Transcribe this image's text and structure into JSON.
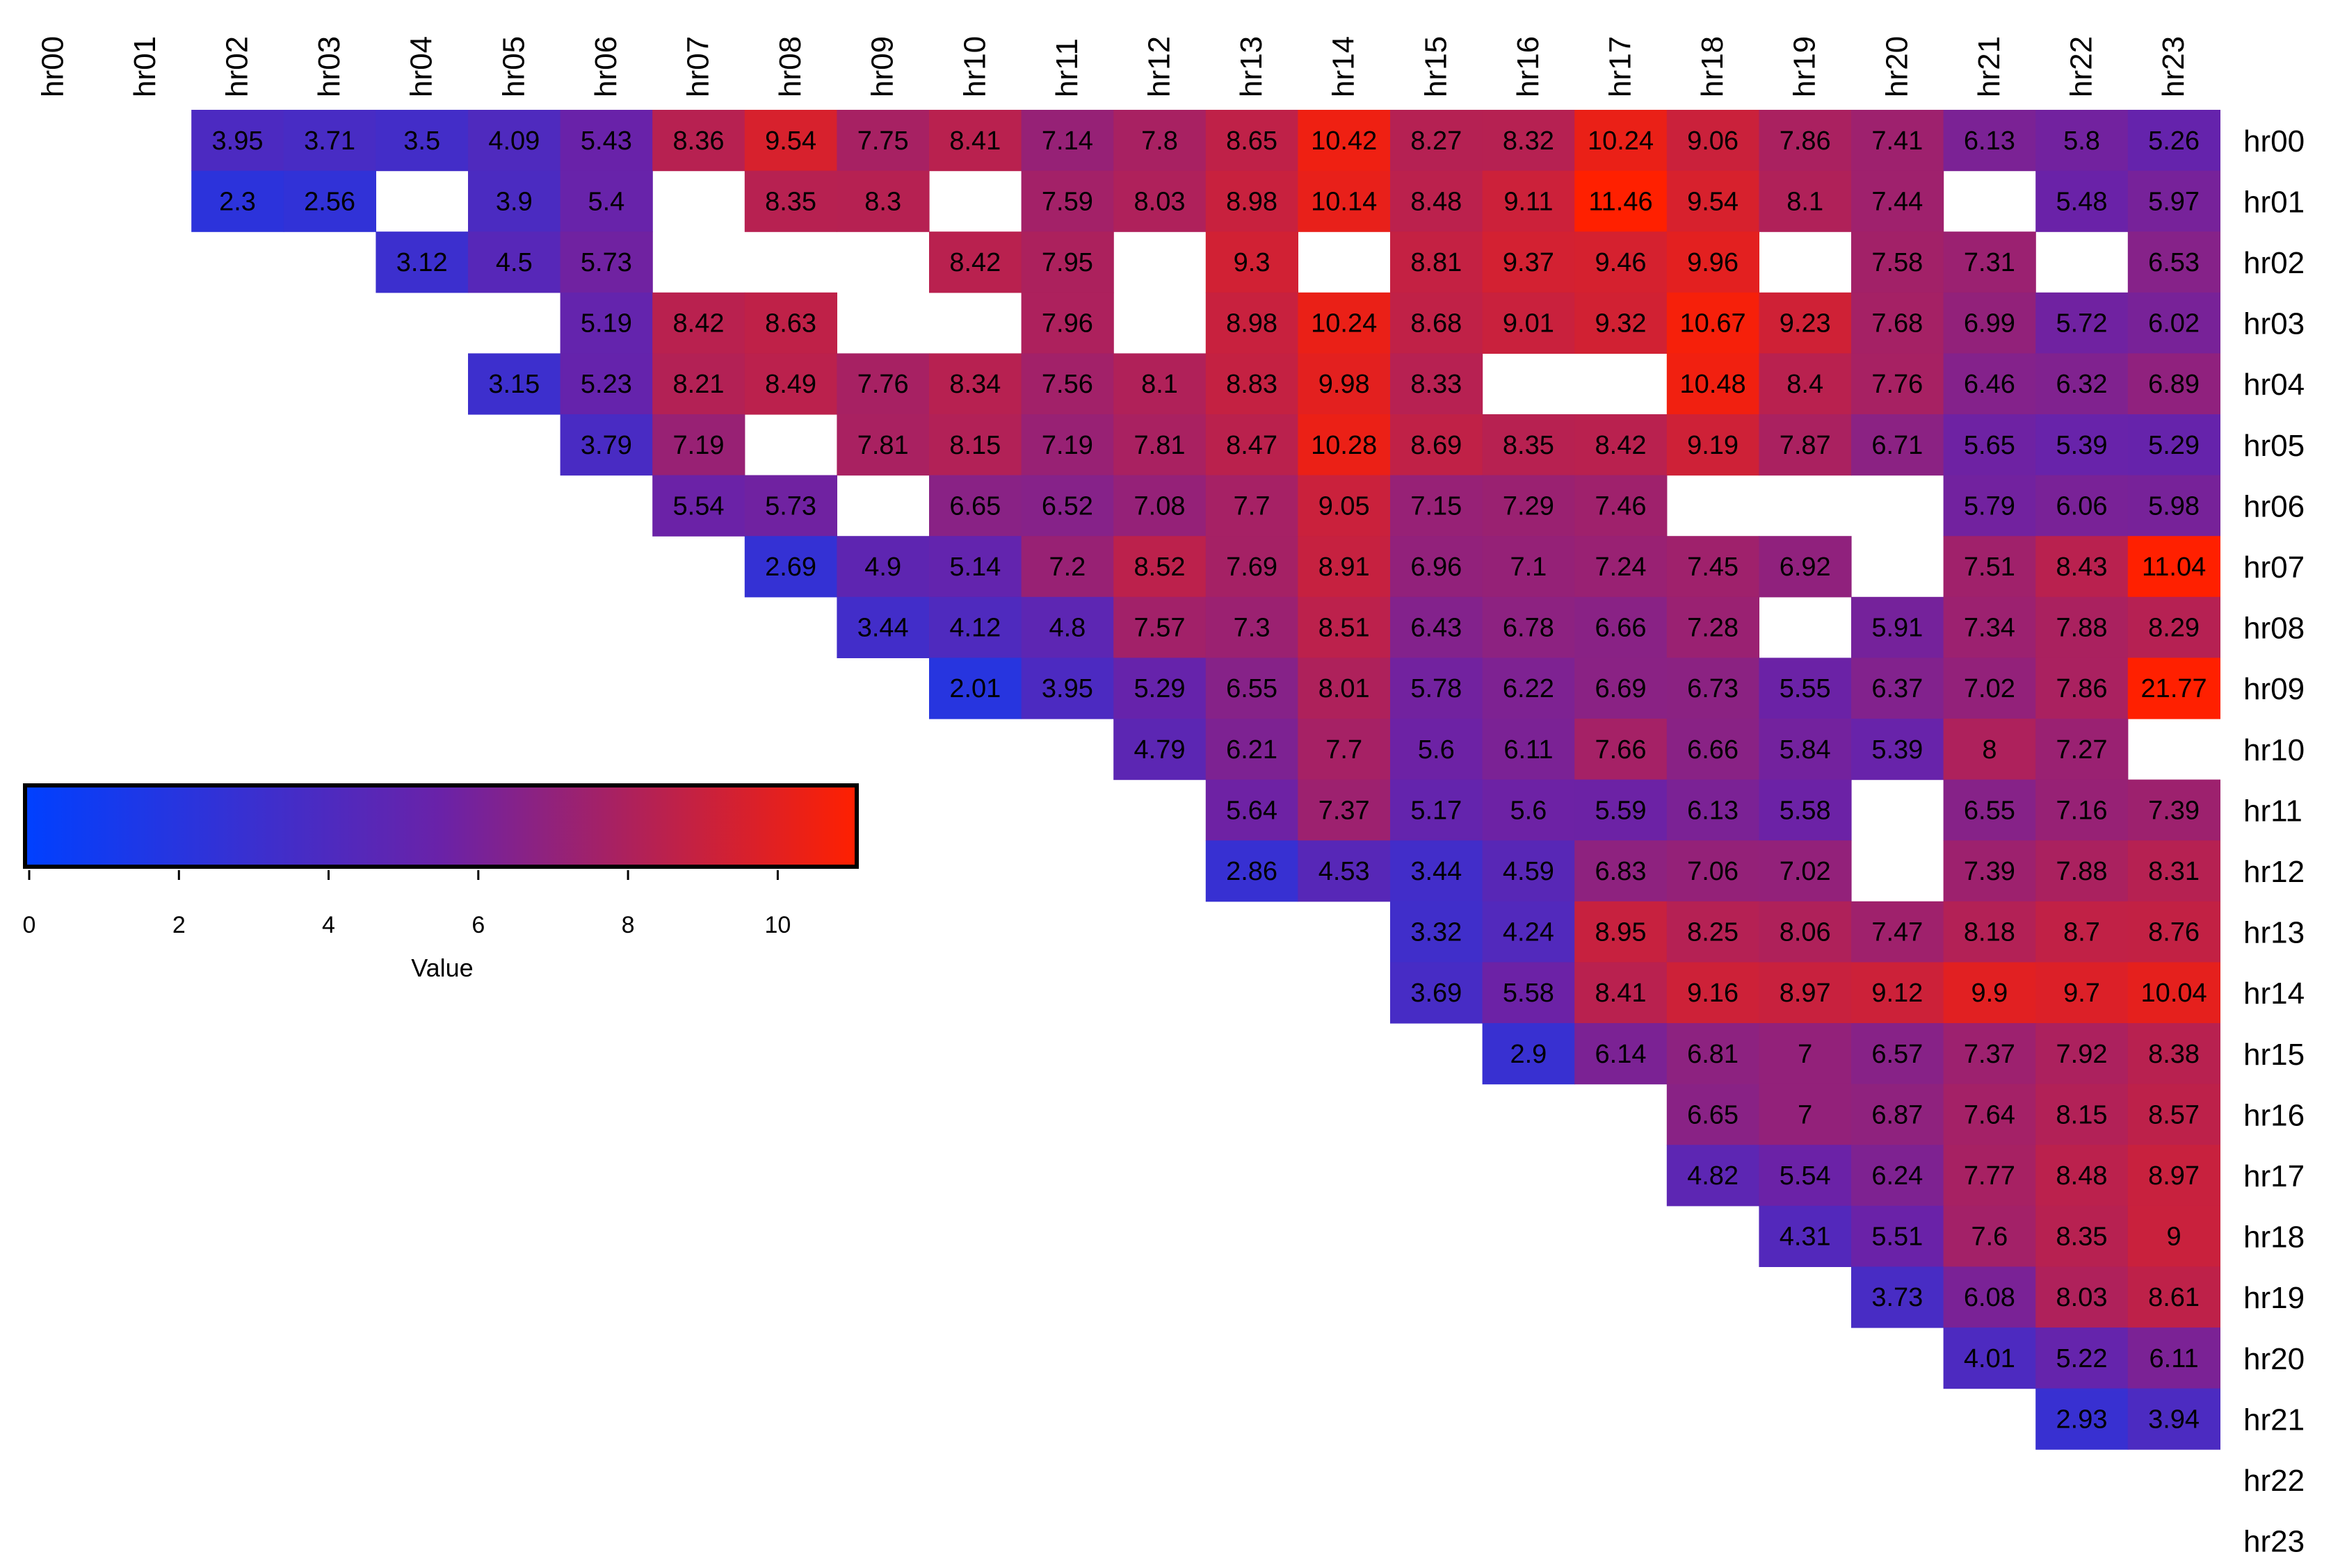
{
  "chart_data": {
    "type": "heatmap",
    "title": "",
    "x_labels": [
      "hr00",
      "hr01",
      "hr02",
      "hr03",
      "hr04",
      "hr05",
      "hr06",
      "hr07",
      "hr08",
      "hr09",
      "hr10",
      "hr11",
      "hr12",
      "hr13",
      "hr14",
      "hr15",
      "hr16",
      "hr17",
      "hr18",
      "hr19",
      "hr20",
      "hr21",
      "hr22",
      "hr23"
    ],
    "y_labels": [
      "hr00",
      "hr01",
      "hr02",
      "hr03",
      "hr04",
      "hr05",
      "hr06",
      "hr07",
      "hr08",
      "hr09",
      "hr10",
      "hr11",
      "hr12",
      "hr13",
      "hr14",
      "hr15",
      "hr16",
      "hr17",
      "hr18",
      "hr19",
      "hr20",
      "hr21",
      "hr22",
      "hr23"
    ],
    "colorbar": {
      "title": "Value",
      "range": [
        0,
        11
      ],
      "ticks": [
        0,
        2,
        4,
        6,
        8,
        10
      ],
      "colors": [
        "#0040ff",
        "#6a22a8",
        "#ff2000"
      ]
    },
    "rows": [
      [
        null,
        null,
        3.95,
        3.71,
        3.5,
        4.09,
        5.43,
        8.36,
        9.54,
        7.75,
        8.41,
        7.14,
        7.8,
        8.65,
        10.42,
        8.27,
        8.32,
        10.24,
        9.06,
        7.86,
        7.41,
        6.13,
        5.8,
        5.26
      ],
      [
        null,
        null,
        2.3,
        2.56,
        null,
        3.9,
        5.4,
        null,
        8.35,
        8.3,
        null,
        7.59,
        8.03,
        8.98,
        10.14,
        8.48,
        9.11,
        11.46,
        9.54,
        8.1,
        7.44,
        null,
        5.48,
        5.97
      ],
      [
        null,
        null,
        null,
        null,
        3.12,
        4.5,
        5.73,
        null,
        null,
        null,
        8.42,
        7.95,
        null,
        9.3,
        null,
        8.81,
        9.37,
        9.46,
        9.96,
        null,
        7.58,
        7.31,
        null,
        6.53
      ],
      [
        null,
        null,
        null,
        null,
        null,
        null,
        5.19,
        8.42,
        8.63,
        null,
        null,
        7.96,
        null,
        8.98,
        10.24,
        8.68,
        9.01,
        9.32,
        10.67,
        9.23,
        7.68,
        6.99,
        5.72,
        6.02
      ],
      [
        null,
        null,
        null,
        null,
        null,
        3.15,
        5.23,
        8.21,
        8.49,
        7.76,
        8.34,
        7.56,
        8.1,
        8.83,
        9.98,
        8.33,
        null,
        null,
        10.48,
        8.4,
        7.76,
        6.46,
        6.32,
        6.89
      ],
      [
        null,
        null,
        null,
        null,
        null,
        null,
        3.79,
        7.19,
        null,
        7.81,
        8.15,
        7.19,
        7.81,
        8.47,
        10.28,
        8.69,
        8.35,
        8.42,
        9.19,
        7.87,
        6.71,
        5.65,
        5.39,
        5.29
      ],
      [
        null,
        null,
        null,
        null,
        null,
        null,
        null,
        5.54,
        5.73,
        null,
        6.65,
        6.52,
        7.08,
        7.7,
        9.05,
        7.15,
        7.29,
        7.46,
        null,
        null,
        null,
        5.79,
        6.06,
        5.98
      ],
      [
        null,
        null,
        null,
        null,
        null,
        null,
        null,
        null,
        2.69,
        4.9,
        5.14,
        7.2,
        8.52,
        7.69,
        8.91,
        6.96,
        7.1,
        7.24,
        7.45,
        6.92,
        null,
        7.51,
        8.43,
        11.04
      ],
      [
        null,
        null,
        null,
        null,
        null,
        null,
        null,
        null,
        null,
        3.44,
        4.12,
        4.8,
        7.57,
        7.3,
        8.51,
        6.43,
        6.78,
        6.66,
        7.28,
        null,
        5.91,
        7.34,
        7.88,
        8.29
      ],
      [
        null,
        null,
        null,
        null,
        null,
        null,
        null,
        null,
        null,
        null,
        2.01,
        3.95,
        5.29,
        6.55,
        8.01,
        5.78,
        6.22,
        6.69,
        6.73,
        5.55,
        6.37,
        7.02,
        7.86,
        21.77
      ],
      [
        null,
        null,
        null,
        null,
        null,
        null,
        null,
        null,
        null,
        null,
        null,
        null,
        4.79,
        6.21,
        7.7,
        5.6,
        6.11,
        7.66,
        6.66,
        5.84,
        5.39,
        8,
        7.27,
        null
      ],
      [
        null,
        null,
        null,
        null,
        null,
        null,
        null,
        null,
        null,
        null,
        null,
        null,
        null,
        5.64,
        7.37,
        5.17,
        5.6,
        5.59,
        6.13,
        5.58,
        null,
        6.55,
        7.16,
        7.39
      ],
      [
        null,
        null,
        null,
        null,
        null,
        null,
        null,
        null,
        null,
        null,
        null,
        null,
        null,
        2.86,
        4.53,
        3.44,
        4.59,
        6.83,
        7.06,
        7.02,
        null,
        7.39,
        7.88,
        8.31
      ],
      [
        null,
        null,
        null,
        null,
        null,
        null,
        null,
        null,
        null,
        null,
        null,
        null,
        null,
        null,
        null,
        3.32,
        4.24,
        8.95,
        8.25,
        8.06,
        7.47,
        8.18,
        8.7,
        8.76
      ],
      [
        null,
        null,
        null,
        null,
        null,
        null,
        null,
        null,
        null,
        null,
        null,
        null,
        null,
        null,
        null,
        3.69,
        5.58,
        8.41,
        9.16,
        8.97,
        9.12,
        9.9,
        9.7,
        10.04
      ],
      [
        null,
        null,
        null,
        null,
        null,
        null,
        null,
        null,
        null,
        null,
        null,
        null,
        null,
        null,
        null,
        null,
        2.9,
        6.14,
        6.81,
        7,
        6.57,
        7.37,
        7.92,
        8.38
      ],
      [
        null,
        null,
        null,
        null,
        null,
        null,
        null,
        null,
        null,
        null,
        null,
        null,
        null,
        null,
        null,
        null,
        null,
        null,
        6.65,
        7,
        6.87,
        7.64,
        8.15,
        8.57
      ],
      [
        null,
        null,
        null,
        null,
        null,
        null,
        null,
        null,
        null,
        null,
        null,
        null,
        null,
        null,
        null,
        null,
        null,
        null,
        4.82,
        5.54,
        6.24,
        7.77,
        8.48,
        8.97
      ],
      [
        null,
        null,
        null,
        null,
        null,
        null,
        null,
        null,
        null,
        null,
        null,
        null,
        null,
        null,
        null,
        null,
        null,
        null,
        null,
        4.31,
        5.51,
        7.6,
        8.35,
        9
      ],
      [
        null,
        null,
        null,
        null,
        null,
        null,
        null,
        null,
        null,
        null,
        null,
        null,
        null,
        null,
        null,
        null,
        null,
        null,
        null,
        null,
        3.73,
        6.08,
        8.03,
        8.61
      ],
      [
        null,
        null,
        null,
        null,
        null,
        null,
        null,
        null,
        null,
        null,
        null,
        null,
        null,
        null,
        null,
        null,
        null,
        null,
        null,
        null,
        null,
        4.01,
        5.22,
        6.11
      ],
      [
        null,
        null,
        null,
        null,
        null,
        null,
        null,
        null,
        null,
        null,
        null,
        null,
        null,
        null,
        null,
        null,
        null,
        null,
        null,
        null,
        null,
        null,
        2.93,
        3.94
      ],
      [
        null,
        null,
        null,
        null,
        null,
        null,
        null,
        null,
        null,
        null,
        null,
        null,
        null,
        null,
        null,
        null,
        null,
        null,
        null,
        null,
        null,
        null,
        null,
        null
      ],
      [
        null,
        null,
        null,
        null,
        null,
        null,
        null,
        null,
        null,
        null,
        null,
        null,
        null,
        null,
        null,
        null,
        null,
        null,
        null,
        null,
        null,
        null,
        null,
        null
      ]
    ]
  }
}
